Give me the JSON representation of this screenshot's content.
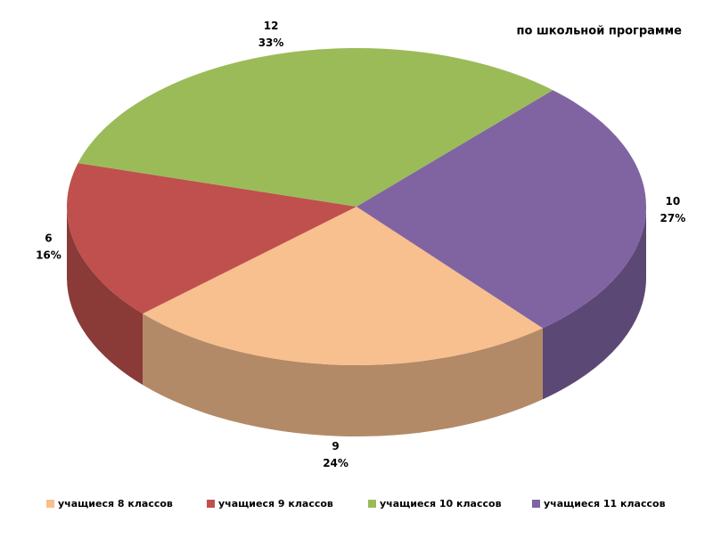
{
  "chart_data": {
    "type": "pie",
    "title": "по школьной программе",
    "categories": [
      "учащиеся 8 классов",
      "учащиеся 9 классов",
      "учащиеся 10 классов",
      "учащиеся 11 классов"
    ],
    "values": [
      9,
      6,
      12,
      10
    ],
    "shares": [
      {
        "value": 24,
        "label": "24%"
      },
      {
        "value": 16,
        "label": "16%"
      },
      {
        "value": 33,
        "label": "33%"
      },
      {
        "value": 27,
        "label": "27%"
      }
    ],
    "colors": [
      "#f8bf8f",
      "#c0504d",
      "#9bbb59",
      "#8064a2"
    ],
    "legend": "bottom"
  }
}
